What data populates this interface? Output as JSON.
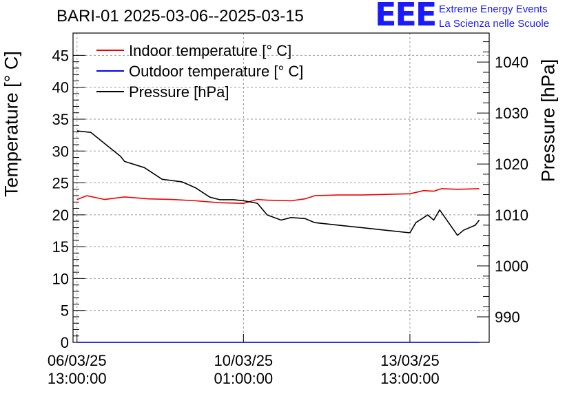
{
  "header": {
    "title": "BARI-01 2025-03-06--2025-03-15",
    "logo_text": "EEE",
    "tagline_1": "Extreme Energy Events",
    "tagline_2": "La Scienza nelle Scuole"
  },
  "colors": {
    "indoor": "#ee0000",
    "outdoor": "#0000ee",
    "pressure": "#000000",
    "logo": "#1a1aff",
    "grid": "#9a9a9a"
  },
  "chart_data": {
    "type": "line",
    "ylabel": "Temperature [° C]",
    "y2label": "Pressure [hPa]",
    "ylim": [
      0,
      48.5
    ],
    "y2lim": [
      985,
      1045.7
    ],
    "xlim": [
      "2025-03-06 11:00",
      "2025-03-15 05:00"
    ],
    "grid": true,
    "legend_position": "top-left",
    "yticks": [
      0,
      5,
      10,
      15,
      20,
      25,
      30,
      35,
      40,
      45
    ],
    "y2ticks": [
      990,
      1000,
      1010,
      1020,
      1030,
      1040
    ],
    "xticks": [
      {
        "x": "2025-03-06 13:00",
        "label_date": "06/03/25",
        "label_time": "13:00:00"
      },
      {
        "x": "2025-03-10 01:00",
        "label_date": "10/03/25",
        "label_time": "01:00:00"
      },
      {
        "x": "2025-03-13 13:00",
        "label_date": "13/03/25",
        "label_time": "13:00:00"
      }
    ],
    "series": [
      {
        "name": "Indoor temperature [° C]",
        "axis": "left",
        "x": [
          "2025-03-06 13:00",
          "2025-03-06 18:00",
          "2025-03-07 03:00",
          "2025-03-07 13:00",
          "2025-03-08 01:00",
          "2025-03-08 13:00",
          "2025-03-09 01:00",
          "2025-03-09 13:00",
          "2025-03-10 01:00",
          "2025-03-10 08:00",
          "2025-03-10 13:00",
          "2025-03-11 01:00",
          "2025-03-11 08:00",
          "2025-03-11 13:00",
          "2025-03-12 01:00",
          "2025-03-12 13:00",
          "2025-03-13 01:00",
          "2025-03-13 13:00",
          "2025-03-13 20:00",
          "2025-03-14 01:00",
          "2025-03-14 05:00",
          "2025-03-14 13:00",
          "2025-03-15 00:00"
        ],
        "y": [
          22.4,
          23.0,
          22.4,
          22.8,
          22.5,
          22.4,
          22.2,
          21.9,
          21.8,
          22.4,
          22.3,
          22.2,
          22.5,
          23.0,
          23.1,
          23.1,
          23.2,
          23.3,
          23.8,
          23.7,
          24.1,
          24.0,
          24.1
        ]
      },
      {
        "name": "Outdoor temperature [° C]",
        "axis": "left",
        "x": [
          "2025-03-06 13:00",
          "2025-03-15 00:00"
        ],
        "y": [
          0,
          0
        ]
      },
      {
        "name": "Pressure [hPa]",
        "axis": "right",
        "x": [
          "2025-03-06 13:00",
          "2025-03-06 20:00",
          "2025-03-07 03:00",
          "2025-03-07 11:00",
          "2025-03-07 13:00",
          "2025-03-07 23:00",
          "2025-03-08 08:00",
          "2025-03-08 18:00",
          "2025-03-09 01:00",
          "2025-03-09 08:00",
          "2025-03-09 13:00",
          "2025-03-09 20:00",
          "2025-03-10 01:00",
          "2025-03-10 08:00",
          "2025-03-10 13:00",
          "2025-03-10 20:00",
          "2025-03-11 01:00",
          "2025-03-11 08:00",
          "2025-03-11 13:00",
          "2025-03-12 01:00",
          "2025-03-12 13:00",
          "2025-03-13 01:00",
          "2025-03-13 13:00",
          "2025-03-13 16:00",
          "2025-03-13 22:00",
          "2025-03-14 01:00",
          "2025-03-14 04:00",
          "2025-03-14 13:00",
          "2025-03-14 16:00",
          "2025-03-14 22:00",
          "2025-03-15 00:00"
        ],
        "y": [
          1026.5,
          1026.2,
          1024.0,
          1021.5,
          1020.5,
          1019.3,
          1017.0,
          1016.5,
          1015.3,
          1013.5,
          1013.0,
          1013.0,
          1012.8,
          1012.3,
          1010.0,
          1009.0,
          1009.5,
          1009.3,
          1008.5,
          1008.0,
          1007.5,
          1007.0,
          1006.5,
          1008.5,
          1010.0,
          1009.0,
          1011.0,
          1006.0,
          1007.0,
          1008.0,
          1009.0
        ]
      }
    ]
  }
}
